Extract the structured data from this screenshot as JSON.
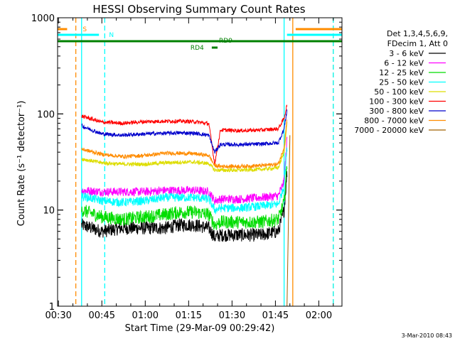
{
  "chart_data": {
    "type": "line",
    "title": "HESSI Observing Summary Count Rates",
    "xlabel": "Start Time (29-Mar-09 00:29:42)",
    "ylabel": "Count Rate (s⁻¹ detector⁻¹)",
    "y_scale": "log",
    "ylim": [
      1,
      1000
    ],
    "xlim": [
      "00:29:42",
      "02:08:00"
    ],
    "x_ticks": [
      "00:30",
      "00:45",
      "01:00",
      "01:15",
      "01:30",
      "01:45",
      "02:00"
    ],
    "y_ticks": [
      "1",
      "10",
      "100",
      "1000"
    ],
    "grid": false,
    "legend_header": [
      "Det 1,3,4,5,6,9,",
      "FDecim 1, Att 0"
    ],
    "legend_position": "right",
    "series": [
      {
        "name": "3 - 6 keV",
        "color": "#000000",
        "x": [
          "00:38",
          "00:45",
          "00:52",
          "01:00",
          "01:07",
          "01:12",
          "01:17",
          "01:22",
          "01:24",
          "01:26",
          "01:33",
          "01:40",
          "01:46",
          "01:48",
          "01:49"
        ],
        "y": [
          7,
          6,
          6.5,
          6.5,
          6.5,
          7,
          7,
          6.5,
          5.2,
          5.5,
          5.5,
          5.5,
          6,
          10,
          25
        ]
      },
      {
        "name": "6 - 12 keV",
        "color": "#ff00ff",
        "x": [
          "00:38",
          "00:45",
          "00:52",
          "01:00",
          "01:07",
          "01:12",
          "01:17",
          "01:22",
          "01:24",
          "01:26",
          "01:33",
          "01:40",
          "01:46",
          "01:48",
          "01:49"
        ],
        "y": [
          16,
          15.5,
          15.5,
          15.5,
          16,
          16,
          16,
          15.5,
          12.5,
          13,
          13,
          13.5,
          14,
          20,
          55
        ]
      },
      {
        "name": "12 - 25 keV",
        "color": "#00dd00",
        "x": [
          "00:38",
          "00:45",
          "00:52",
          "01:00",
          "01:07",
          "01:12",
          "01:17",
          "01:22",
          "01:24",
          "01:26",
          "01:33",
          "01:40",
          "01:46",
          "01:48",
          "01:49"
        ],
        "y": [
          10,
          8.5,
          8,
          8.5,
          9,
          9.5,
          9.5,
          9,
          7,
          7.5,
          7.5,
          7.5,
          8,
          12,
          30
        ]
      },
      {
        "name": "25 - 50 keV",
        "color": "#00ffff",
        "x": [
          "00:38",
          "00:45",
          "00:52",
          "01:00",
          "01:07",
          "01:12",
          "01:17",
          "01:22",
          "01:24",
          "01:26",
          "01:33",
          "01:40",
          "01:46",
          "01:48",
          "01:49"
        ],
        "y": [
          14,
          12.5,
          12,
          12.5,
          13.5,
          13.5,
          13.5,
          13,
          10,
          10.5,
          10.5,
          11,
          11.5,
          18,
          45
        ]
      },
      {
        "name": "50 - 100 keV",
        "color": "#dddd00",
        "x": [
          "00:38",
          "00:45",
          "00:52",
          "01:00",
          "01:07",
          "01:12",
          "01:17",
          "01:22",
          "01:24",
          "01:26",
          "01:33",
          "01:40",
          "01:46",
          "01:48",
          "01:49"
        ],
        "y": [
          34,
          31,
          30,
          30,
          31,
          31.5,
          31.5,
          30.5,
          26,
          26,
          26,
          26.5,
          27.5,
          40,
          80
        ]
      },
      {
        "name": "100 - 300 keV",
        "color": "#ff0000",
        "x": [
          "00:38",
          "00:45",
          "00:52",
          "01:00",
          "01:07",
          "01:12",
          "01:17",
          "01:22",
          "01:24",
          "01:26",
          "01:33",
          "01:40",
          "01:46",
          "01:48",
          "01:49"
        ],
        "y": [
          95,
          82,
          80,
          83,
          84,
          84,
          83,
          79,
          30,
          68,
          67,
          68,
          70,
          90,
          125
        ]
      },
      {
        "name": "300 - 800 keV",
        "color": "#0000cc",
        "x": [
          "00:38",
          "00:45",
          "00:52",
          "01:00",
          "01:07",
          "01:12",
          "01:17",
          "01:22",
          "01:24",
          "01:26",
          "01:33",
          "01:40",
          "01:46",
          "01:48",
          "01:49"
        ],
        "y": [
          75,
          62,
          60,
          62,
          63,
          63.5,
          63,
          60,
          40,
          48,
          48,
          48.5,
          50,
          70,
          110
        ]
      },
      {
        "name": "800 - 7000 keV",
        "color": "#ff8c00",
        "x": [
          "00:38",
          "00:45",
          "00:52",
          "01:00",
          "01:07",
          "01:12",
          "01:17",
          "01:22",
          "01:24",
          "01:26",
          "01:33",
          "01:40",
          "01:46",
          "01:48",
          "01:49"
        ],
        "y": [
          43,
          38,
          36,
          37,
          39,
          39,
          38.5,
          37,
          29,
          28.5,
          28.5,
          29,
          30,
          45,
          90
        ]
      },
      {
        "name": "7000 - 20000 keV",
        "color": "#a06000",
        "x": [
          "01:49",
          "01:50"
        ],
        "y": [
          1,
          60
        ]
      }
    ],
    "flag_bars": [
      {
        "label": "S",
        "color": "#ff8c00",
        "x_start": "00:29:42",
        "x_end": "00:33"
      },
      {
        "label": "S",
        "color": "#ff8c00",
        "x_start": "01:52",
        "x_end": "02:08"
      },
      {
        "label": "N",
        "color": "#00ffff",
        "x_start": "00:29:42",
        "x_end": "00:44"
      },
      {
        "label": "N",
        "color": "#00ffff",
        "x_start": "01:49",
        "x_end": "02:08"
      },
      {
        "label": "RD9",
        "color": "#008000",
        "x_start": "00:29:42",
        "x_end": "02:08"
      },
      {
        "label": "RD4",
        "color": "#008000",
        "x_start": "01:23",
        "x_end": "01:25"
      }
    ],
    "vlines": [
      {
        "x": "00:36",
        "color": "#ff8c00",
        "style": "dashed"
      },
      {
        "x": "00:38",
        "color": "#00ffff",
        "style": "solid"
      },
      {
        "x": "00:46",
        "color": "#00ffff",
        "style": "dashed"
      },
      {
        "x": "01:48",
        "color": "#00ffff",
        "style": "solid"
      },
      {
        "x": "01:51",
        "color": "#ff8c00",
        "style": "solid"
      },
      {
        "x": "02:05",
        "color": "#ff8c00",
        "style": "dashed"
      },
      {
        "x": "02:05",
        "color": "#00ffff",
        "style": "dashed"
      }
    ]
  },
  "footer_date": "3-Mar-2010 08:43"
}
